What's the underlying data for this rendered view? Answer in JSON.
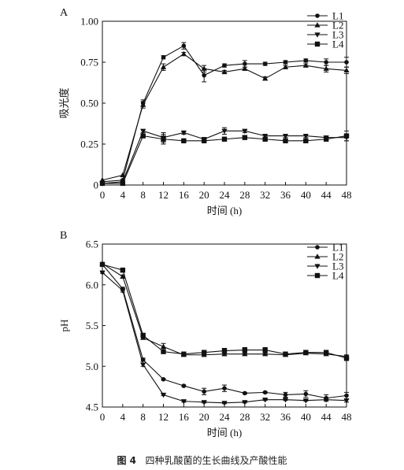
{
  "caption": {
    "number": "图 4",
    "text": "四种乳酸菌的生长曲线及产酸性能"
  },
  "chart_data": [
    {
      "type": "line",
      "panel_label": "A",
      "ylabel": "吸光度",
      "xlabel": "时间 (h)",
      "ylim": [
        0,
        1.0
      ],
      "xlim": [
        0,
        48
      ],
      "yticks": [
        0,
        0.25,
        0.5,
        0.75,
        1.0
      ],
      "ytick_labels": [
        "0",
        "0.25",
        "0.50",
        "0.75",
        "1.00"
      ],
      "xticks": [
        0,
        4,
        8,
        12,
        16,
        20,
        24,
        28,
        32,
        36,
        40,
        44,
        48
      ],
      "legend_position": "top-right",
      "x": [
        0,
        4,
        8,
        12,
        16,
        20,
        24,
        28,
        32,
        36,
        40,
        44,
        48
      ],
      "series": [
        {
          "name": "L1",
          "marker": "circle",
          "values": [
            0.02,
            0.03,
            0.5,
            0.78,
            0.85,
            0.67,
            0.73,
            0.74,
            0.74,
            0.75,
            0.76,
            0.75,
            0.75
          ],
          "errors": [
            0,
            0,
            0.02,
            0.01,
            0.02,
            0.04,
            0.01,
            0.02,
            0.01,
            0.01,
            0.01,
            0.02,
            0.03
          ]
        },
        {
          "name": "L2",
          "marker": "triangle-up",
          "values": [
            0.03,
            0.06,
            0.49,
            0.72,
            0.8,
            0.71,
            0.69,
            0.71,
            0.65,
            0.72,
            0.73,
            0.71,
            0.7
          ],
          "errors": [
            0,
            0,
            0.02,
            0.02,
            0.01,
            0.02,
            0.01,
            0.01,
            0.01,
            0.01,
            0.01,
            0.02,
            0.02
          ]
        },
        {
          "name": "L3",
          "marker": "triangle-down",
          "values": [
            0.01,
            0.02,
            0.33,
            0.29,
            0.32,
            0.28,
            0.33,
            0.33,
            0.3,
            0.3,
            0.3,
            0.29,
            0.29
          ],
          "errors": [
            0,
            0,
            0.01,
            0.03,
            0.01,
            0.01,
            0.02,
            0.01,
            0.01,
            0.01,
            0.01,
            0.01,
            0.02
          ]
        },
        {
          "name": "L4",
          "marker": "square",
          "values": [
            0.01,
            0.01,
            0.3,
            0.28,
            0.27,
            0.27,
            0.28,
            0.29,
            0.28,
            0.27,
            0.27,
            0.28,
            0.3
          ],
          "errors": [
            0,
            0,
            0.01,
            0.03,
            0.01,
            0.01,
            0.01,
            0.01,
            0.01,
            0.01,
            0.01,
            0.01,
            0.03
          ]
        }
      ]
    },
    {
      "type": "line",
      "panel_label": "B",
      "ylabel": "pH",
      "xlabel": "时间 (h)",
      "ylim": [
        4.5,
        6.5
      ],
      "xlim": [
        0,
        48
      ],
      "yticks": [
        4.5,
        5.0,
        5.5,
        6.0,
        6.5
      ],
      "ytick_labels": [
        "4.5",
        "5.0",
        "5.5",
        "6.0",
        "6.5"
      ],
      "xticks": [
        0,
        4,
        8,
        12,
        16,
        20,
        24,
        28,
        32,
        36,
        40,
        44,
        48
      ],
      "legend_position": "top-right",
      "x": [
        0,
        4,
        8,
        12,
        16,
        20,
        24,
        28,
        32,
        36,
        40,
        44,
        48
      ],
      "series": [
        {
          "name": "L1",
          "marker": "circle",
          "values": [
            6.25,
            5.95,
            5.08,
            4.84,
            4.76,
            4.69,
            4.73,
            4.67,
            4.68,
            4.65,
            4.66,
            4.61,
            4.64
          ],
          "errors": [
            0.01,
            0.02,
            0.02,
            0.01,
            0.01,
            0.04,
            0.04,
            0.01,
            0.01,
            0.03,
            0.04,
            0.04,
            0.04
          ]
        },
        {
          "name": "L2",
          "marker": "triangle-up",
          "values": [
            6.26,
            6.1,
            5.35,
            5.24,
            5.14,
            5.14,
            5.15,
            5.15,
            5.15,
            5.14,
            5.16,
            5.15,
            5.12
          ],
          "errors": [
            0.01,
            0.02,
            0.02,
            0.04,
            0.01,
            0.01,
            0.02,
            0.01,
            0.01,
            0.01,
            0.01,
            0.01,
            0.02
          ]
        },
        {
          "name": "L3",
          "marker": "triangle-down",
          "values": [
            6.15,
            5.93,
            5.02,
            4.65,
            4.57,
            4.56,
            4.55,
            4.56,
            4.59,
            4.59,
            4.58,
            4.59,
            4.58
          ],
          "errors": [
            0.01,
            0.02,
            0.02,
            0.01,
            0.01,
            0.01,
            0.01,
            0.01,
            0.01,
            0.01,
            0.01,
            0.01,
            0.02
          ]
        },
        {
          "name": "L4",
          "marker": "square",
          "values": [
            6.25,
            6.18,
            5.38,
            5.18,
            5.15,
            5.17,
            5.19,
            5.2,
            5.2,
            5.15,
            5.17,
            5.17,
            5.1
          ],
          "errors": [
            0.01,
            0.01,
            0.02,
            0.02,
            0.01,
            0.01,
            0.03,
            0.03,
            0.03,
            0.01,
            0.01,
            0.01,
            0.03
          ]
        }
      ]
    }
  ]
}
